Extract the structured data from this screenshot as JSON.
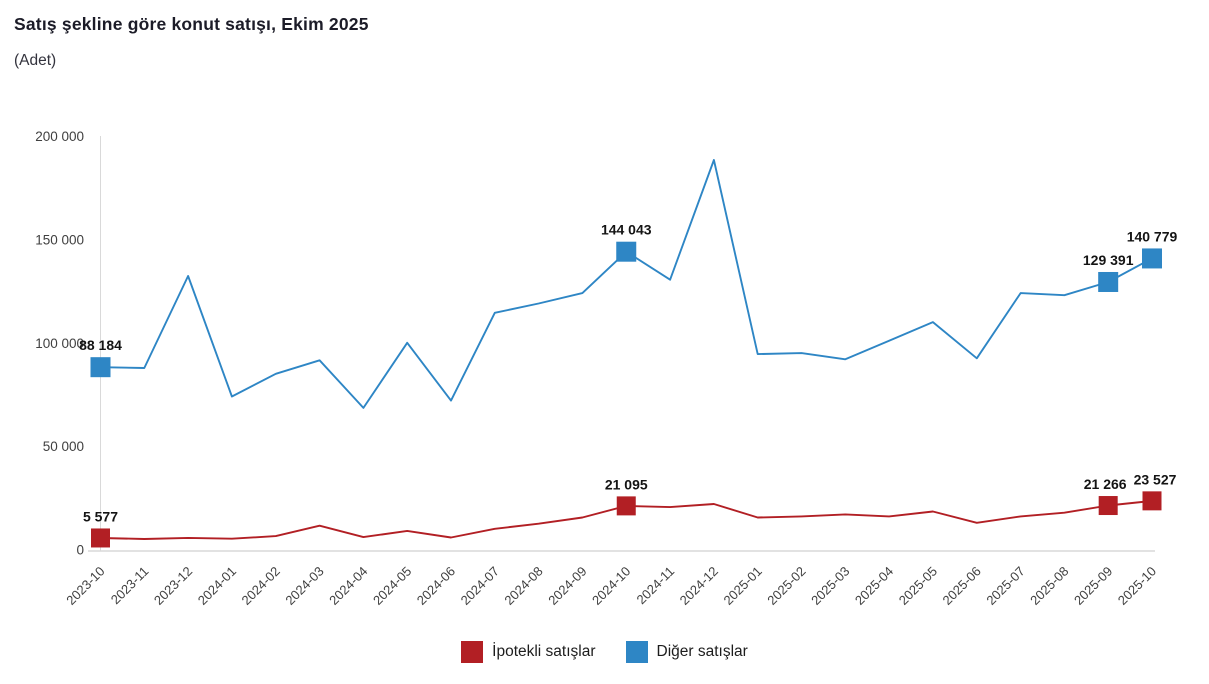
{
  "title": "Satış şekline göre konut satışı, Ekim 2025",
  "subtitle": "(Adet)",
  "colors": {
    "mortgaged_red": "#b21f24",
    "other_blue": "#2e86c5",
    "axis_line": "#d9d9d9",
    "tick_text": "#404040",
    "data_label_text": "#141414"
  },
  "legend": {
    "position": "bottom",
    "items": [
      {
        "label": "İpotekli satışlar",
        "color": "#b21f24"
      },
      {
        "label": "Diğer satışlar",
        "color": "#2e86c5"
      }
    ]
  },
  "chart_data": {
    "type": "line",
    "title": "Satış şekline göre konut satışı, Ekim 2025",
    "subtitle": "(Adet)",
    "xlabel": "",
    "ylabel": "",
    "ylim": [
      0,
      200000
    ],
    "yticks": [
      0,
      50000,
      100000,
      150000,
      200000
    ],
    "ytick_labels": [
      "0",
      "50 000",
      "100 000",
      "150 000",
      "200 000"
    ],
    "grid": false,
    "legend_position": "bottom",
    "x": [
      "2023-10",
      "2023-11",
      "2023-12",
      "2024-01",
      "2024-02",
      "2024-03",
      "2024-04",
      "2024-05",
      "2024-06",
      "2024-07",
      "2024-08",
      "2024-09",
      "2024-10",
      "2024-11",
      "2024-12",
      "2025-01",
      "2025-02",
      "2025-03",
      "2025-04",
      "2025-05",
      "2025-06",
      "2025-07",
      "2025-08",
      "2025-09",
      "2025-10"
    ],
    "series": [
      {
        "name": "İpotekli satışlar",
        "color": "#b21f24",
        "marker_size": 19,
        "values": [
          5577,
          5100,
          5600,
          5200,
          6500,
          11500,
          6000,
          9000,
          5800,
          10000,
          12500,
          15500,
          21095,
          20500,
          22000,
          15500,
          16000,
          17000,
          16000,
          18400,
          12900,
          16000,
          17800,
          21266,
          23527
        ],
        "labeled_points": [
          {
            "i": 0,
            "value": 5577,
            "label": "5 577",
            "dx": 0
          },
          {
            "i": 12,
            "value": 21095,
            "label": "21 095",
            "dx": 0
          },
          {
            "i": 23,
            "value": 21266,
            "label": "21 266",
            "dx": -3
          },
          {
            "i": 24,
            "value": 23527,
            "label": "23 527",
            "dx": 3
          }
        ]
      },
      {
        "name": "Diğer satışlar",
        "color": "#2e86c5",
        "marker_size": 20,
        "values": [
          88184,
          87800,
          132300,
          74000,
          85000,
          91500,
          68500,
          100000,
          72000,
          114500,
          119000,
          124000,
          144043,
          130500,
          188400,
          94500,
          95000,
          92000,
          101000,
          110000,
          92500,
          124000,
          123000,
          129391,
          140779
        ],
        "labeled_points": [
          {
            "i": 0,
            "value": 88184,
            "label": "88 184",
            "dx": 0
          },
          {
            "i": 12,
            "value": 144043,
            "label": "144 043",
            "dx": 0
          },
          {
            "i": 23,
            "value": 129391,
            "label": "129 391",
            "dx": 0
          },
          {
            "i": 24,
            "value": 140779,
            "label": "140 779",
            "dx": 0
          }
        ]
      }
    ]
  }
}
